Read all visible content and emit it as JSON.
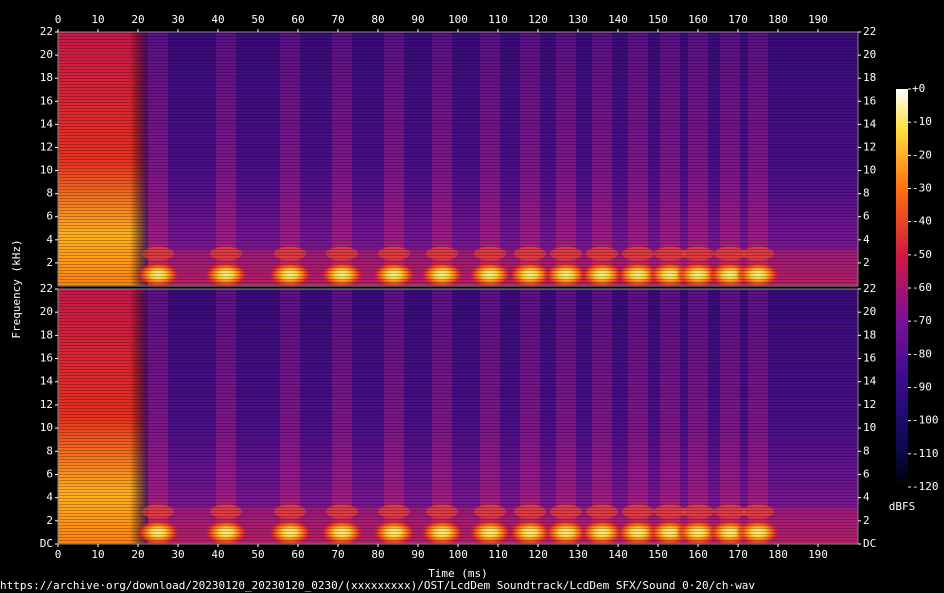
{
  "chart_data": [
    {
      "type": "spectrogram",
      "ylabel": "Frequency (kHz)",
      "xlim": [
        0,
        200
      ],
      "xticks": [
        0,
        10,
        20,
        30,
        40,
        50,
        60,
        70,
        80,
        90,
        100,
        110,
        120,
        130,
        140,
        150,
        160,
        170,
        180,
        190
      ],
      "ylim": [
        0,
        22
      ],
      "yticks": [
        2,
        4,
        6,
        8,
        10,
        12,
        14,
        16,
        18,
        20,
        22
      ],
      "bursts": {
        "x": [
          25,
          42,
          58,
          71,
          84,
          96,
          108,
          118,
          127,
          136,
          145,
          153,
          160,
          168,
          175
        ],
        "values": [
          1,
          1,
          1,
          1,
          1,
          1,
          1,
          1,
          1,
          1,
          1,
          1,
          1,
          1,
          1
        ]
      }
    },
    {
      "type": "spectrogram",
      "xlabel": "Time (ms)",
      "xlim": [
        0,
        200
      ],
      "xticks": [
        0,
        10,
        20,
        30,
        40,
        50,
        60,
        70,
        80,
        90,
        100,
        110,
        120,
        130,
        140,
        150,
        160,
        170,
        180,
        190
      ],
      "ylim": [
        0,
        22
      ],
      "yticks": [
        {
          "value": 0,
          "label": "DC"
        },
        2,
        4,
        6,
        8,
        10,
        12,
        14,
        16,
        18,
        20,
        22
      ],
      "bursts": {
        "x": [
          25,
          42,
          58,
          71,
          84,
          96,
          108,
          118,
          127,
          136,
          145,
          153,
          160,
          168,
          175
        ],
        "values": [
          1,
          1,
          1,
          1,
          1,
          1,
          1,
          1,
          1,
          1,
          1,
          1,
          1,
          1,
          1
        ]
      }
    }
  ],
  "colorbar": {
    "label": "dBFS",
    "lim": [
      -120,
      0
    ],
    "ticks": [
      {
        "value": 0,
        "label": "+0"
      },
      -10,
      -20,
      -30,
      -40,
      -50,
      -60,
      -70,
      -80,
      -90,
      -100,
      -110,
      -120
    ]
  },
  "caption": "https://archive·org/download/20230120_20230120_0230/(xxxxxxxxx)/OST/LcdDem Soundtrack/LcdDem SFX/Sound 0·20/ch·wav"
}
